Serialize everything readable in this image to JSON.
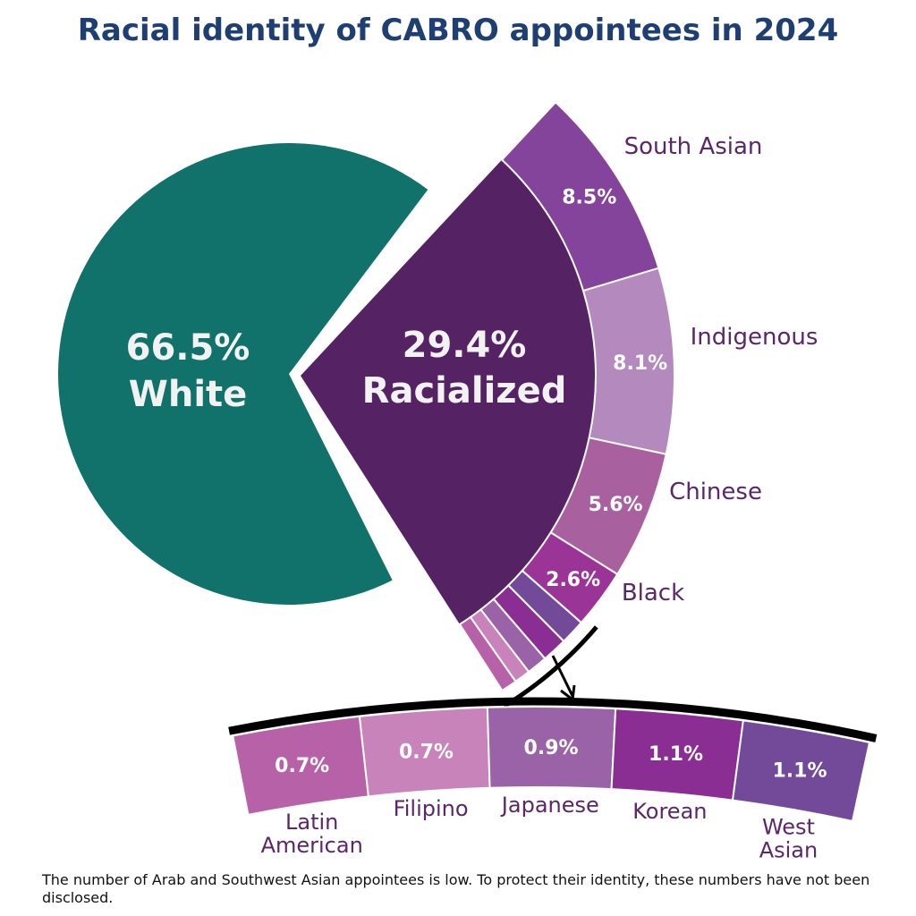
{
  "title": "Racial identity of CABRO appointees in 2024",
  "footnote": "The number of Arab and Southwest Asian appointees is low. To protect their identity, these numbers have not been disclosed.",
  "colors": {
    "white": "#10726b",
    "racialized": "#552363",
    "category_label": "#5a2768",
    "title": "#1f3f73"
  },
  "chart_data": {
    "type": "pie",
    "title": "Racial identity of CABRO appointees in 2024",
    "main": [
      {
        "label": "White",
        "value": 66.5,
        "display": "66.5%",
        "color": "#10726b"
      },
      {
        "label": "Racialized",
        "value": 29.4,
        "display": "29.4%",
        "color": "#552363"
      }
    ],
    "breakdown": [
      {
        "label": "South Asian",
        "value": 8.5,
        "display": "8.5%",
        "color": "#84449b"
      },
      {
        "label": "Indigenous",
        "value": 8.1,
        "display": "8.1%",
        "color": "#b489bd"
      },
      {
        "label": "Chinese",
        "value": 5.6,
        "display": "5.6%",
        "color": "#a9609f"
      },
      {
        "label": "Black",
        "value": 2.6,
        "display": "2.6%",
        "color": "#9b3497"
      },
      {
        "label": "West Asian",
        "value": 1.1,
        "display": "1.1%",
        "color": "#734a9a"
      },
      {
        "label": "Korean",
        "value": 1.1,
        "display": "1.1%",
        "color": "#8b2e93"
      },
      {
        "label": "Japanese",
        "value": 0.9,
        "display": "0.9%",
        "color": "#9a63a7"
      },
      {
        "label": "Filipino",
        "value": 0.7,
        "display": "0.7%",
        "color": "#c783ba"
      },
      {
        "label": "Latin American",
        "value": 0.7,
        "display": "0.7%",
        "color": "#b761a8"
      }
    ],
    "zoom_order": [
      "Latin American",
      "Filipino",
      "Japanese",
      "Korean",
      "West Asian"
    ]
  }
}
